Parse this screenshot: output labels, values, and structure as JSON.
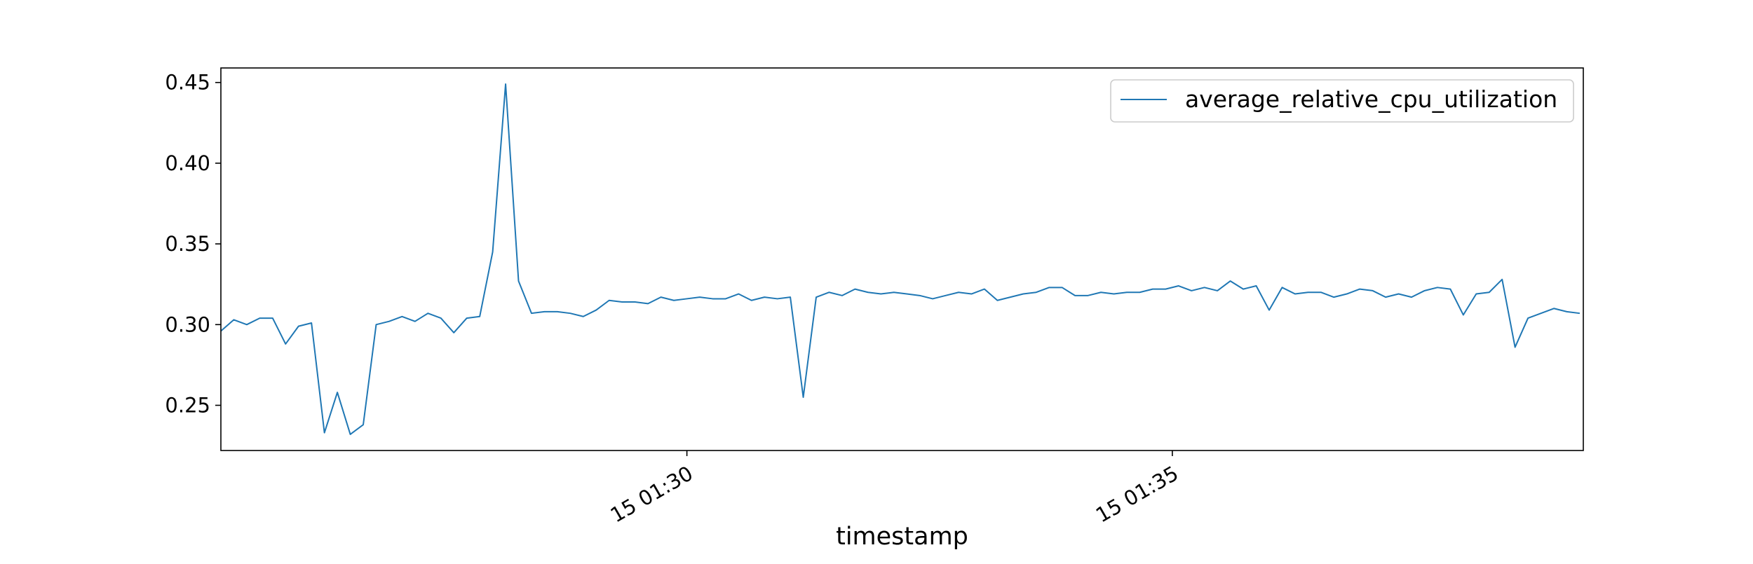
{
  "chart_data": {
    "type": "line",
    "title": "",
    "xlabel": "timestamp",
    "ylabel": "",
    "x_tick_labels": [
      "15 01:30",
      "15 01:35"
    ],
    "x_tick_minutes": [
      30,
      35
    ],
    "x_range_minutes": [
      25.2,
      39.233
    ],
    "x_step_minutes": 0.1333,
    "x_start": "15 01:25:12",
    "ylim": [
      0.222,
      0.459
    ],
    "yticks": [
      0.25,
      0.3,
      0.35,
      0.4,
      0.45
    ],
    "ytick_labels": [
      "0.25",
      "0.30",
      "0.35",
      "0.40",
      "0.45"
    ],
    "grid": false,
    "legend_position": "upper right",
    "series": [
      {
        "name": "average_relative_cpu_utilization",
        "color": "#1f77b4",
        "values": [
          0.296,
          0.303,
          0.3,
          0.304,
          0.304,
          0.288,
          0.299,
          0.301,
          0.233,
          0.258,
          0.232,
          0.238,
          0.3,
          0.302,
          0.305,
          0.302,
          0.307,
          0.304,
          0.295,
          0.304,
          0.305,
          0.345,
          0.449,
          0.327,
          0.307,
          0.308,
          0.308,
          0.307,
          0.305,
          0.309,
          0.315,
          0.314,
          0.314,
          0.313,
          0.317,
          0.315,
          0.316,
          0.317,
          0.316,
          0.316,
          0.319,
          0.315,
          0.317,
          0.316,
          0.317,
          0.255,
          0.317,
          0.32,
          0.318,
          0.322,
          0.32,
          0.319,
          0.32,
          0.319,
          0.318,
          0.316,
          0.318,
          0.32,
          0.319,
          0.322,
          0.315,
          0.317,
          0.319,
          0.32,
          0.323,
          0.323,
          0.318,
          0.318,
          0.32,
          0.319,
          0.32,
          0.32,
          0.322,
          0.322,
          0.324,
          0.321,
          0.323,
          0.321,
          0.327,
          0.322,
          0.324,
          0.309,
          0.323,
          0.319,
          0.32,
          0.32,
          0.317,
          0.319,
          0.322,
          0.321,
          0.317,
          0.319,
          0.317,
          0.321,
          0.323,
          0.322,
          0.306,
          0.319,
          0.32,
          0.328,
          0.286,
          0.304,
          0.307,
          0.31,
          0.308,
          0.307
        ]
      }
    ]
  }
}
